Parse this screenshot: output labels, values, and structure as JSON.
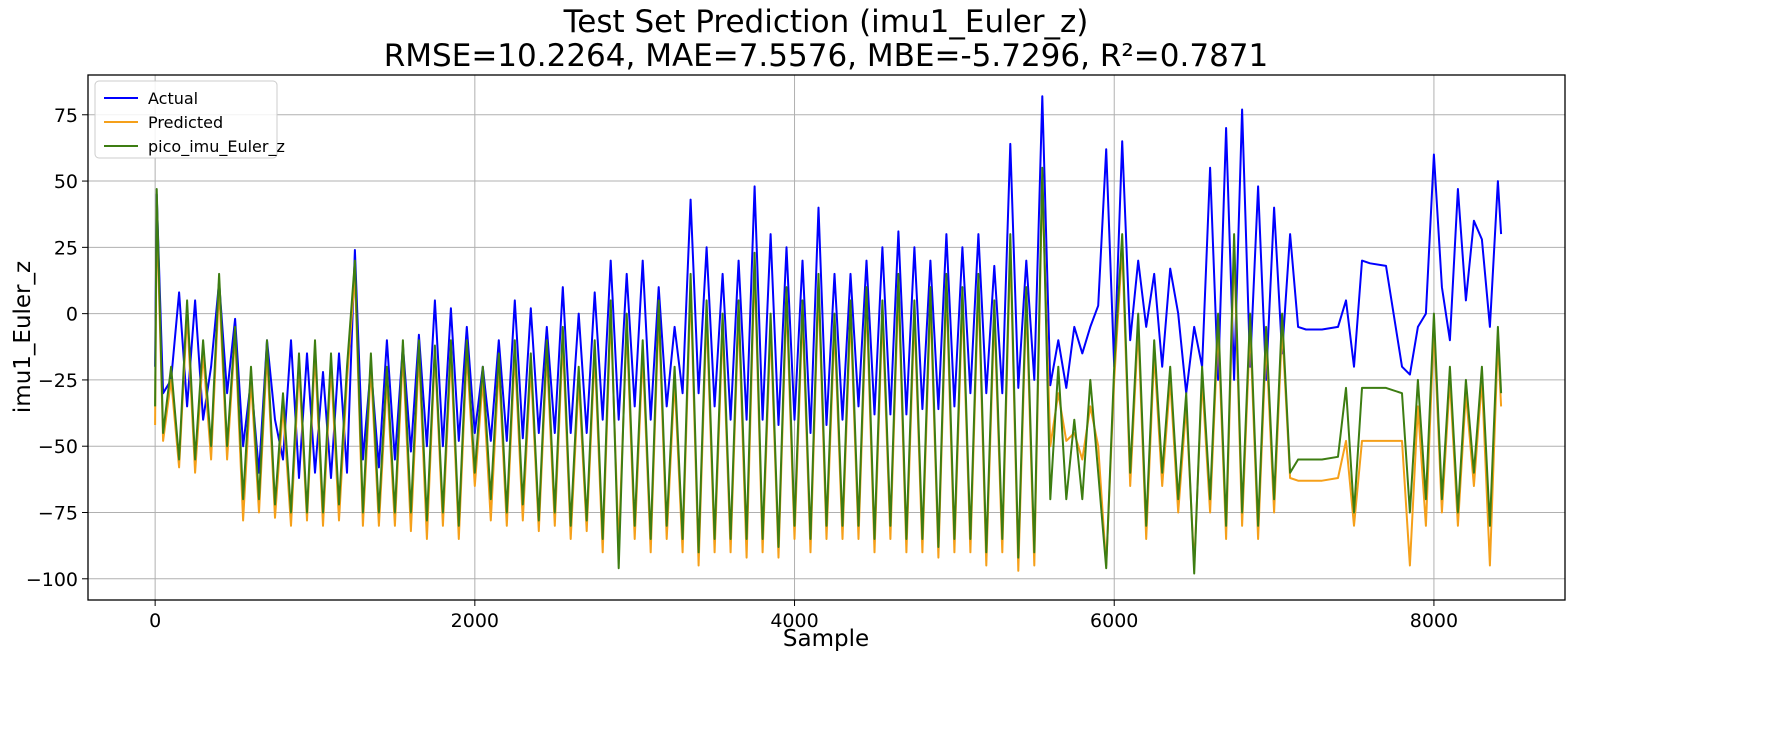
{
  "chart_data": {
    "type": "line",
    "title": "Test Set Prediction (imu1_Euler_z)",
    "subtitle": "RMSE=10.2264, MAE=7.5576, MBE=-5.7296, R²=0.7871",
    "xlabel": "Sample",
    "ylabel": "imu1_Euler_z",
    "xlim": [
      -420,
      8820
    ],
    "ylim": [
      -108,
      90
    ],
    "xticks": [
      0,
      2000,
      4000,
      6000,
      8000
    ],
    "yticks": [
      -100,
      -75,
      -50,
      -25,
      0,
      25,
      50,
      75
    ],
    "ytick_labels": [
      "−100",
      "−75",
      "−50",
      "−25",
      "0",
      "25",
      "50",
      "75"
    ],
    "grid": true,
    "legend_position": "top-left",
    "x": [
      0,
      10,
      50,
      100,
      150,
      200,
      250,
      300,
      350,
      400,
      450,
      500,
      550,
      600,
      650,
      700,
      750,
      800,
      850,
      900,
      950,
      1000,
      1050,
      1100,
      1150,
      1200,
      1250,
      1300,
      1350,
      1400,
      1450,
      1500,
      1550,
      1600,
      1650,
      1700,
      1750,
      1800,
      1850,
      1900,
      1950,
      2000,
      2050,
      2100,
      2150,
      2200,
      2250,
      2300,
      2350,
      2400,
      2450,
      2500,
      2550,
      2600,
      2650,
      2700,
      2750,
      2800,
      2850,
      2900,
      2950,
      3000,
      3050,
      3100,
      3150,
      3200,
      3250,
      3300,
      3350,
      3400,
      3450,
      3500,
      3550,
      3600,
      3650,
      3700,
      3750,
      3800,
      3850,
      3900,
      3950,
      4000,
      4050,
      4100,
      4150,
      4200,
      4250,
      4300,
      4350,
      4400,
      4450,
      4500,
      4550,
      4600,
      4650,
      4700,
      4750,
      4800,
      4850,
      4900,
      4950,
      5000,
      5050,
      5100,
      5150,
      5200,
      5250,
      5300,
      5350,
      5400,
      5450,
      5500,
      5550,
      5600,
      5650,
      5700,
      5750,
      5800,
      5850,
      5900,
      5950,
      6000,
      6050,
      6100,
      6150,
      6200,
      6250,
      6300,
      6350,
      6400,
      6450,
      6500,
      6550,
      6600,
      6650,
      6700,
      6750,
      6800,
      6850,
      6900,
      6950,
      7000,
      7050,
      7100,
      7150,
      7200,
      7300,
      7400,
      7450,
      7500,
      7550,
      7600,
      7700,
      7800,
      7850,
      7900,
      7950,
      8000,
      8050,
      8100,
      8150,
      8200,
      8250,
      8300,
      8350,
      8400,
      8420
    ],
    "series": [
      {
        "name": "Actual",
        "color": "#0000ff",
        "values": [
          -20,
          45,
          -30,
          -25,
          8,
          -35,
          5,
          -40,
          -20,
          12,
          -30,
          -2,
          -50,
          -25,
          -60,
          -10,
          -40,
          -55,
          -10,
          -62,
          -15,
          -60,
          -22,
          -62,
          -15,
          -60,
          24,
          -55,
          -20,
          -58,
          -10,
          -55,
          -12,
          -52,
          -8,
          -50,
          5,
          -50,
          2,
          -48,
          -5,
          -45,
          -20,
          -48,
          -10,
          -48,
          5,
          -47,
          2,
          -45,
          -5,
          -45,
          10,
          -45,
          0,
          -45,
          8,
          -40,
          20,
          -40,
          15,
          -35,
          20,
          -40,
          10,
          -35,
          -5,
          -30,
          43,
          -30,
          25,
          -35,
          15,
          -40,
          20,
          -40,
          48,
          -40,
          30,
          -42,
          25,
          -40,
          20,
          -45,
          40,
          -42,
          15,
          -40,
          15,
          -35,
          20,
          -38,
          25,
          -38,
          31,
          -38,
          25,
          -36,
          20,
          -36,
          30,
          -35,
          25,
          -30,
          30,
          -30,
          18,
          -30,
          64,
          -28,
          20,
          -25,
          82,
          -27,
          -10,
          -28,
          -5,
          -15,
          -5,
          3,
          62,
          -20,
          65,
          -10,
          20,
          -5,
          15,
          -20,
          17,
          0,
          -30,
          -5,
          -20,
          55,
          -25,
          70,
          -25,
          77,
          -20,
          48,
          -25,
          40,
          -15,
          30,
          -5,
          -6,
          -6,
          -5,
          5,
          -20,
          20,
          19,
          18,
          -20,
          -23,
          -5,
          0,
          60,
          10,
          -10,
          47,
          5,
          35,
          28,
          -5,
          50,
          30
        ]
      },
      {
        "name": "Predicted",
        "color": "#f5a01a",
        "values": [
          -42,
          40,
          -48,
          -25,
          -58,
          0,
          -60,
          -15,
          -55,
          10,
          -55,
          -8,
          -78,
          -25,
          -75,
          -15,
          -77,
          -35,
          -80,
          -20,
          -78,
          -15,
          -80,
          -20,
          -78,
          -25,
          15,
          -80,
          -20,
          -80,
          -25,
          -80,
          -15,
          -82,
          -15,
          -85,
          -15,
          -80,
          -15,
          -85,
          -15,
          -65,
          -25,
          -78,
          -20,
          -80,
          -15,
          -78,
          -20,
          -82,
          -15,
          -80,
          -10,
          -85,
          -25,
          -82,
          -15,
          -90,
          0,
          -88,
          -5,
          -85,
          -15,
          -90,
          0,
          -85,
          -25,
          -90,
          10,
          -95,
          0,
          -90,
          -5,
          -90,
          0,
          -92,
          18,
          -90,
          -5,
          -92,
          5,
          -85,
          0,
          -90,
          10,
          -85,
          -5,
          -85,
          0,
          -85,
          5,
          -90,
          0,
          -85,
          10,
          -90,
          0,
          -90,
          5,
          -92,
          10,
          -90,
          5,
          -90,
          10,
          -95,
          0,
          -90,
          25,
          -97,
          5,
          -95,
          50,
          -50,
          -30,
          -48,
          -45,
          -55,
          -35,
          -50,
          -95,
          -25,
          25,
          -65,
          -5,
          -85,
          -15,
          -65,
          -25,
          -75,
          -35,
          -95,
          -25,
          -75,
          -5,
          -85,
          25,
          -80,
          -5,
          -85,
          -10,
          -75,
          -5,
          -62,
          -63,
          -63,
          -63,
          -62,
          -48,
          -80,
          -48,
          -48,
          -48,
          -48,
          -95,
          -35,
          -80,
          -5,
          -75,
          -25,
          -80,
          -30,
          -65,
          -25,
          -95,
          -10,
          -35
        ]
      },
      {
        "name": "pico_imu_Euler_z",
        "color": "#3d7d12",
        "values": [
          -35,
          47,
          -45,
          -20,
          -55,
          5,
          -55,
          -10,
          -50,
          15,
          -50,
          -5,
          -70,
          -20,
          -70,
          -10,
          -72,
          -30,
          -75,
          -15,
          -75,
          -10,
          -75,
          -15,
          -72,
          -20,
          20,
          -75,
          -15,
          -75,
          -20,
          -75,
          -10,
          -75,
          -10,
          -78,
          -12,
          -75,
          -10,
          -80,
          -10,
          -60,
          -20,
          -70,
          -15,
          -75,
          -10,
          -72,
          -15,
          -78,
          -10,
          -75,
          -5,
          -80,
          -20,
          -78,
          -10,
          -85,
          5,
          -96,
          0,
          -80,
          -10,
          -85,
          5,
          -80,
          -20,
          -85,
          15,
          -90,
          5,
          -85,
          0,
          -85,
          5,
          -85,
          23,
          -85,
          0,
          -88,
          10,
          -80,
          5,
          -85,
          15,
          -80,
          0,
          -80,
          5,
          -80,
          10,
          -85,
          5,
          -80,
          15,
          -85,
          5,
          -85,
          10,
          -88,
          15,
          -85,
          10,
          -85,
          15,
          -90,
          5,
          -85,
          30,
          -92,
          10,
          -90,
          55,
          -70,
          -20,
          -70,
          -40,
          -70,
          -25,
          -60,
          -96,
          -20,
          30,
          -60,
          0,
          -80,
          -10,
          -60,
          -20,
          -70,
          -30,
          -98,
          -20,
          -70,
          0,
          -80,
          30,
          -75,
          0,
          -80,
          -5,
          -70,
          0,
          -60,
          -55,
          -55,
          -55,
          -54,
          -28,
          -75,
          -28,
          -28,
          -28,
          -30,
          -75,
          -25,
          -70,
          0,
          -70,
          -20,
          -75,
          -25,
          -60,
          -20,
          -80,
          -5,
          -30
        ]
      }
    ]
  }
}
